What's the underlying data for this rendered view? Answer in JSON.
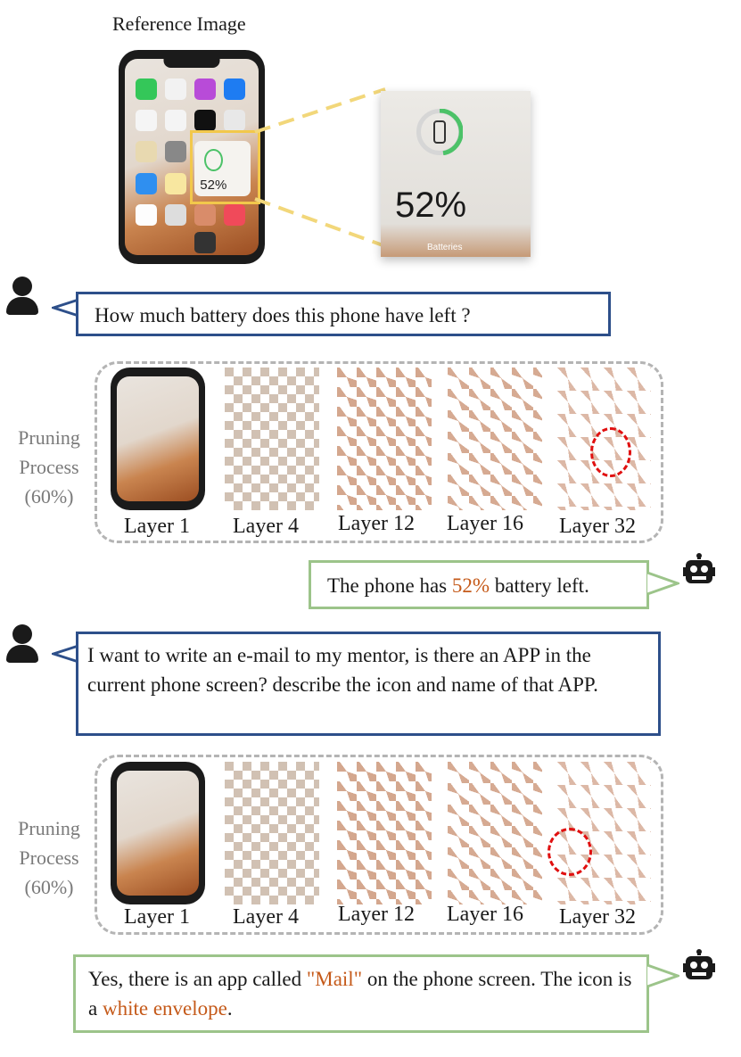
{
  "reference": {
    "title": "Reference Image",
    "widget_percent": "52%",
    "zoom_percent": "52%",
    "zoom_caption": "Batteries"
  },
  "dialog": [
    {
      "question": "How much battery does this phone have left ?",
      "pruning_label": [
        "Pruning",
        "Process",
        "(60%)"
      ],
      "layers": [
        "Layer 1",
        "Layer 4",
        "Layer 12",
        "Layer 16",
        "Layer 32"
      ],
      "answer_parts": [
        "The phone has ",
        "52%",
        " battery left."
      ]
    },
    {
      "question": "I want to write an e-mail to my mentor, is there an APP in the current phone screen? describe the icon and name of that APP.",
      "pruning_label": [
        "Pruning",
        "Process",
        "(60%)"
      ],
      "layers": [
        "Layer 1",
        "Layer 4",
        "Layer 12",
        "Layer 16",
        "Layer 32"
      ],
      "answer_parts": [
        "Yes, there is an app called ",
        "\"Mail\"",
        " on the phone screen. The icon is a ",
        "white envelope",
        "."
      ]
    }
  ],
  "colors": {
    "user_border": "#2d4f8a",
    "bot_border": "#9cc48a",
    "highlight": "#c55a1a",
    "zoom_frame": "#f2c84b",
    "circle": "#e01010"
  },
  "icons": [
    "user-icon",
    "robot-icon",
    "zoom-connector"
  ]
}
